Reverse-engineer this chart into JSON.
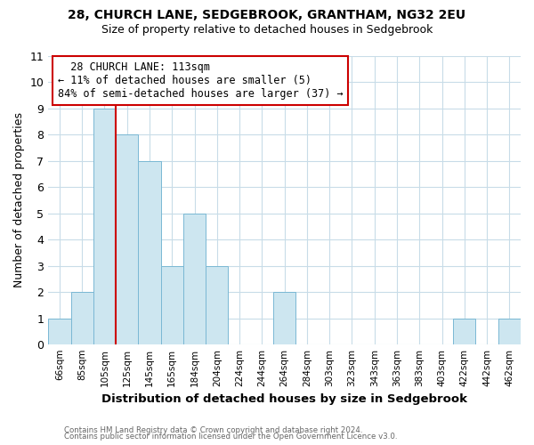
{
  "title1": "28, CHURCH LANE, SEDGEBROOK, GRANTHAM, NG32 2EU",
  "title2": "Size of property relative to detached houses in Sedgebrook",
  "xlabel": "Distribution of detached houses by size in Sedgebrook",
  "ylabel": "Number of detached properties",
  "footnote1": "Contains HM Land Registry data © Crown copyright and database right 2024.",
  "footnote2": "Contains public sector information licensed under the Open Government Licence v3.0.",
  "annotation_title": "28 CHURCH LANE: 113sqm",
  "annotation_line1": "← 11% of detached houses are smaller (5)",
  "annotation_line2": "84% of semi-detached houses are larger (37) →",
  "bar_labels": [
    "66sqm",
    "85sqm",
    "105sqm",
    "125sqm",
    "145sqm",
    "165sqm",
    "184sqm",
    "204sqm",
    "224sqm",
    "244sqm",
    "264sqm",
    "284sqm",
    "303sqm",
    "323sqm",
    "343sqm",
    "363sqm",
    "383sqm",
    "403sqm",
    "422sqm",
    "442sqm",
    "462sqm"
  ],
  "bar_values": [
    1,
    2,
    9,
    8,
    7,
    3,
    5,
    3,
    0,
    0,
    2,
    0,
    0,
    0,
    0,
    0,
    0,
    0,
    1,
    0,
    1
  ],
  "bar_color": "#cde6f0",
  "bar_edge_color": "#7ab8d4",
  "reference_line_color": "#cc0000",
  "ylim": [
    0,
    11
  ],
  "yticks": [
    0,
    1,
    2,
    3,
    4,
    5,
    6,
    7,
    8,
    9,
    10,
    11
  ],
  "annotation_box_color": "white",
  "annotation_box_edge_color": "#cc0000",
  "grid_color": "#c8dce8",
  "background_color": "white",
  "title_fontsize": 10,
  "subtitle_fontsize": 9
}
